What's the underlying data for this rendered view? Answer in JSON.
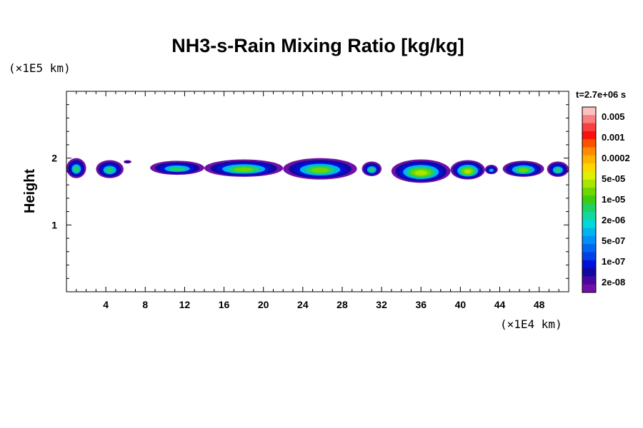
{
  "chart_data": {
    "type": "heatmap",
    "title": "NH3-s-Rain Mixing Ratio [kg/kg]",
    "ylabel": "Height",
    "x_unit_label": "(×1E4 km)",
    "y_unit_label": "(×1E5 km)",
    "time_label": "t=2.7e+06 s",
    "xlim": [
      0,
      51
    ],
    "ylim": [
      0,
      3
    ],
    "x_ticks": [
      "4",
      "8",
      "12",
      "16",
      "20",
      "24",
      "28",
      "32",
      "36",
      "40",
      "44",
      "48"
    ],
    "y_ticks": [
      "1",
      "2"
    ],
    "colorbar": {
      "labels": [
        "0.005",
        "0.001",
        "0.0002",
        "5e-05",
        "1e-05",
        "2e-06",
        "5e-07",
        "1e-07",
        "2e-08"
      ],
      "colors": [
        "#fcc0c0",
        "#fa7f7f",
        "#f84040",
        "#f81010",
        "#ff5000",
        "#ff8c00",
        "#ffb400",
        "#ffd700",
        "#dcf000",
        "#a8e600",
        "#6ed600",
        "#3ccc10",
        "#20d060",
        "#10d8a0",
        "#00d8d8",
        "#00b4f0",
        "#0090f8",
        "#0068f0",
        "#0040e8",
        "#0010d8",
        "#1008a0",
        "#4808a0",
        "#7010a8"
      ]
    },
    "clouds": [
      {
        "x": [
          0.0,
          2.0
        ],
        "y": [
          1.7,
          2.0
        ],
        "level": 4
      },
      {
        "x": [
          3.0,
          5.8
        ],
        "y": [
          1.7,
          1.97
        ],
        "level": 4
      },
      {
        "x": [
          5.8,
          6.6
        ],
        "y": [
          1.92,
          1.97
        ],
        "level": 1
      },
      {
        "x": [
          8.5,
          14.0
        ],
        "y": [
          1.75,
          1.96
        ],
        "level": 4
      },
      {
        "x": [
          14.0,
          22.0
        ],
        "y": [
          1.72,
          1.98
        ],
        "level": 5
      },
      {
        "x": [
          22.0,
          29.5
        ],
        "y": [
          1.68,
          2.0
        ],
        "level": 5
      },
      {
        "x": [
          30.0,
          32.0
        ],
        "y": [
          1.73,
          1.95
        ],
        "level": 4
      },
      {
        "x": [
          33.0,
          39.0
        ],
        "y": [
          1.63,
          1.98
        ],
        "level": 6
      },
      {
        "x": [
          39.0,
          42.5
        ],
        "y": [
          1.68,
          1.97
        ],
        "level": 6
      },
      {
        "x": [
          42.5,
          43.8
        ],
        "y": [
          1.76,
          1.9
        ],
        "level": 3
      },
      {
        "x": [
          44.3,
          48.5
        ],
        "y": [
          1.72,
          1.96
        ],
        "level": 5
      },
      {
        "x": [
          48.8,
          51.0
        ],
        "y": [
          1.72,
          1.95
        ],
        "level": 4
      }
    ]
  }
}
